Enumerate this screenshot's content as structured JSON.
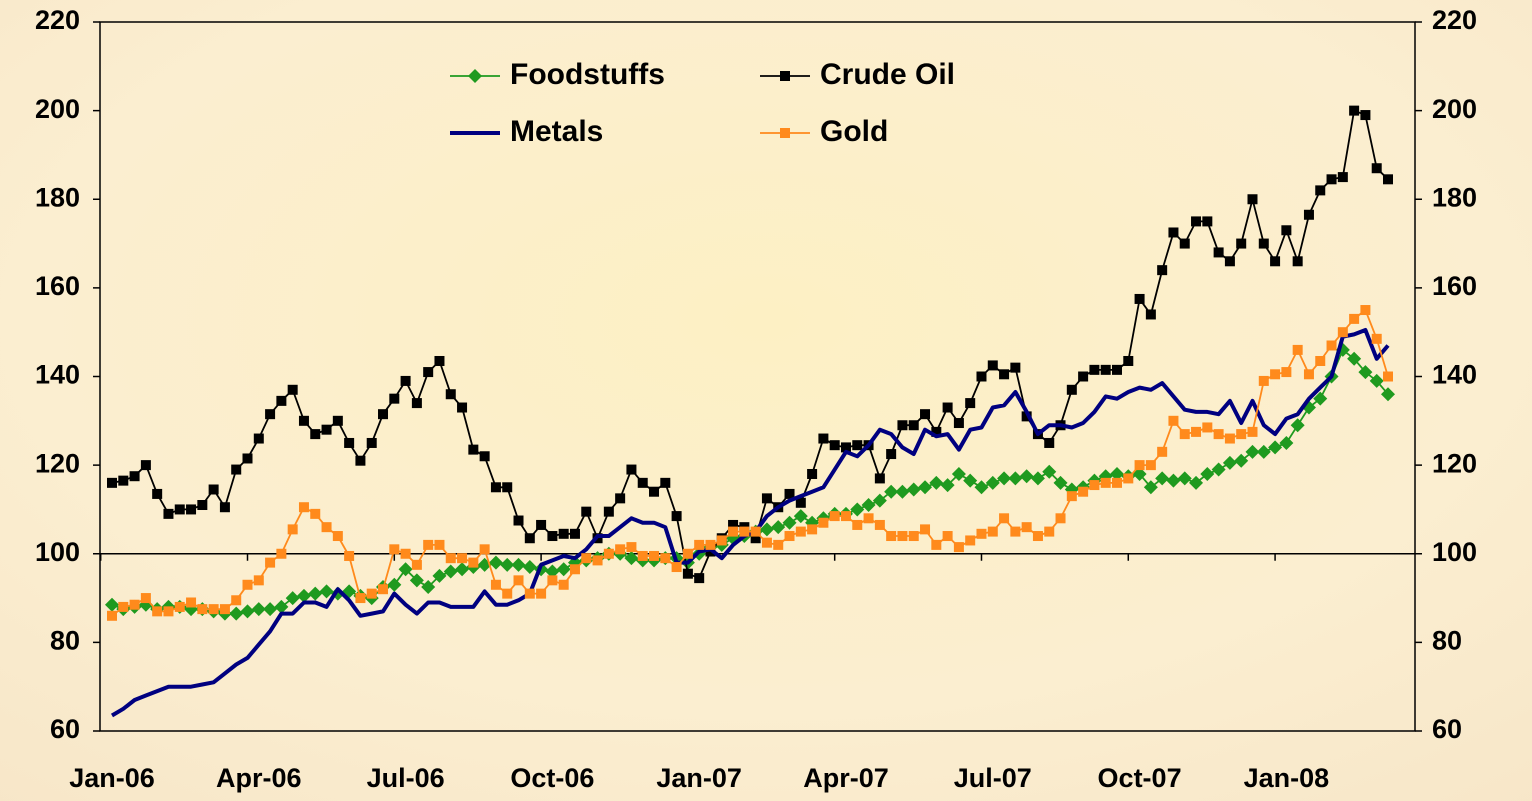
{
  "chart_data": {
    "type": "line",
    "categories": [
      "Jan-06",
      null,
      null,
      null,
      null,
      null,
      null,
      null,
      null,
      null,
      null,
      null,
      null,
      "Apr-06",
      null,
      null,
      null,
      null,
      null,
      null,
      null,
      null,
      null,
      null,
      null,
      null,
      "Jul-06",
      null,
      null,
      null,
      null,
      null,
      null,
      null,
      null,
      null,
      null,
      null,
      null,
      "Oct-06",
      null,
      null,
      null,
      null,
      null,
      null,
      null,
      null,
      null,
      null,
      null,
      null,
      "Jan-07",
      null,
      null,
      null,
      null,
      null,
      null,
      null,
      null,
      null,
      null,
      null,
      null,
      "Apr-07",
      null,
      null,
      null,
      null,
      null,
      null,
      null,
      null,
      null,
      null,
      null,
      null,
      "Jul-07",
      null,
      null,
      null,
      null,
      null,
      null,
      null,
      null,
      null,
      null,
      null,
      null,
      "Oct-07",
      null,
      null,
      null,
      null,
      null,
      null,
      null,
      null,
      null,
      null,
      null,
      null,
      "Jan-08",
      null,
      null,
      null,
      null,
      null,
      null,
      null,
      null,
      null
    ],
    "series": [
      {
        "name": "Foodstuffs",
        "color": "#1f9a1f",
        "marker": "diamond",
        "values": [
          88.5,
          87.5,
          88,
          88.5,
          87.5,
          88,
          88,
          87.5,
          87.5,
          87,
          86.5,
          86.5,
          87,
          87.5,
          87.5,
          88,
          90,
          90.5,
          91,
          91.5,
          91,
          91.5,
          90.5,
          90,
          92.5,
          93,
          96.5,
          94,
          92.5,
          95,
          96,
          96.5,
          97,
          97.5,
          98,
          97.5,
          97.5,
          97,
          96.5,
          96,
          96.5,
          98,
          98.5,
          99,
          100,
          100,
          99,
          98.5,
          98.5,
          99,
          99,
          98,
          100,
          101.5,
          102,
          103.5,
          104,
          105,
          105.5,
          106,
          107,
          108.5,
          107,
          108,
          109,
          109,
          110,
          111,
          112,
          114,
          114,
          114.5,
          115,
          116,
          115.5,
          118,
          116.5,
          115,
          116,
          117,
          117,
          117.5,
          117,
          118.5,
          116,
          114.5,
          115,
          116.5,
          117.5,
          118,
          117.5,
          118,
          115,
          117,
          116.5,
          117,
          116,
          118,
          119,
          120.5,
          121,
          123,
          123,
          124,
          125,
          129,
          133,
          135,
          140,
          146,
          144,
          141,
          139,
          136
        ]
      },
      {
        "name": "Crude Oil",
        "color": "#000000",
        "marker": "square",
        "values": [
          116,
          116.5,
          117.5,
          120,
          113.5,
          109,
          110,
          110,
          111,
          114.5,
          110.5,
          119,
          121.5,
          126,
          131.5,
          134.5,
          137,
          130,
          127,
          128,
          130,
          125,
          121,
          125,
          131.5,
          135,
          139,
          134,
          141,
          143.5,
          136,
          133,
          123.5,
          122,
          115,
          115,
          107.5,
          103.5,
          106.5,
          104,
          104.5,
          104.5,
          109.5,
          103.5,
          109.5,
          112.5,
          119,
          116,
          114,
          116,
          108.5,
          95.5,
          94.5,
          100.5,
          103.5,
          106.5,
          106,
          103.5,
          112.5,
          110.5,
          113.5,
          111.5,
          118,
          126,
          124.5,
          124,
          124.5,
          124.5,
          117,
          122.5,
          129,
          129,
          131.5,
          127.5,
          133,
          129.5,
          134,
          140,
          142.5,
          140.5,
          142,
          131,
          127,
          125,
          129,
          137,
          140,
          141.5,
          141.5,
          141.5,
          143.5,
          157.5,
          154,
          164,
          172.5,
          170,
          175,
          175,
          168,
          166,
          170,
          180,
          170,
          166,
          173,
          166,
          176.5,
          182,
          184.5,
          185,
          200,
          199,
          187,
          184.5
        ]
      },
      {
        "name": "Metals",
        "color": "#000080",
        "values": [
          63.5,
          65,
          67,
          68,
          69,
          70,
          70,
          70,
          70.5,
          71,
          73,
          75,
          76.5,
          79.5,
          82.5,
          86.5,
          86.5,
          89,
          89,
          88,
          92,
          89.5,
          86,
          86.5,
          87,
          91,
          88.5,
          86.5,
          89,
          89,
          88,
          88,
          88,
          91.5,
          88.5,
          88.5,
          89.5,
          91,
          97.5,
          98.5,
          99.5,
          99,
          101,
          104,
          104,
          106,
          108,
          107,
          107,
          106,
          98,
          98,
          100.5,
          101,
          99,
          102,
          104,
          105,
          108.5,
          110.5,
          112,
          113,
          114,
          115,
          119,
          123,
          122,
          124.5,
          128,
          127,
          124,
          122.5,
          128,
          126.5,
          127,
          123.5,
          128,
          128.5,
          133,
          133.5,
          136.5,
          132,
          127,
          129,
          129,
          128.5,
          129.5,
          132,
          135.5,
          135,
          136.5,
          137.5,
          137,
          138.5,
          135.5,
          132.5,
          132,
          132,
          131.5,
          134.5,
          129.5,
          134.5,
          129,
          127,
          130.5,
          131.5,
          135,
          137.5,
          140,
          149,
          149.5,
          150.5,
          144,
          147
        ]
      },
      {
        "name": "Gold",
        "color": "#ff8a1c",
        "marker": "square",
        "values": [
          86,
          88,
          88.5,
          90,
          87,
          87,
          88,
          89,
          87.5,
          87.5,
          87.5,
          89.5,
          93,
          94,
          98,
          100,
          105.5,
          110.5,
          109,
          106,
          104,
          99.5,
          90,
          91,
          92,
          101,
          100,
          97.5,
          102,
          102,
          99,
          99,
          98,
          101,
          93,
          91,
          94,
          91,
          91,
          94,
          93,
          96.5,
          99,
          98.5,
          100,
          101,
          101.5,
          99.5,
          99.5,
          99,
          97,
          100,
          102,
          102,
          103,
          105,
          105,
          105,
          102.5,
          102,
          104,
          105,
          105.5,
          107,
          108.5,
          108.5,
          106.5,
          108,
          106.5,
          104,
          104,
          104,
          105.5,
          102,
          104,
          101.5,
          103,
          104.5,
          105,
          108,
          105,
          106,
          104,
          105,
          108,
          113,
          114,
          115.5,
          116,
          116,
          117,
          120,
          120,
          123,
          130,
          127,
          127.5,
          128.5,
          127,
          126,
          127,
          127.5,
          139,
          140.5,
          141,
          146,
          140.5,
          143.5,
          147,
          150,
          153,
          155,
          148.5,
          140
        ]
      }
    ],
    "ylim": [
      60,
      220
    ],
    "yticks": [
      60,
      80,
      100,
      120,
      140,
      160,
      180,
      200,
      220
    ],
    "y2lim": [
      60,
      220
    ],
    "y2ticks": [
      60,
      80,
      100,
      120,
      140,
      160,
      180,
      200,
      220
    ],
    "x_axis_crosses": 100,
    "grid": false
  }
}
